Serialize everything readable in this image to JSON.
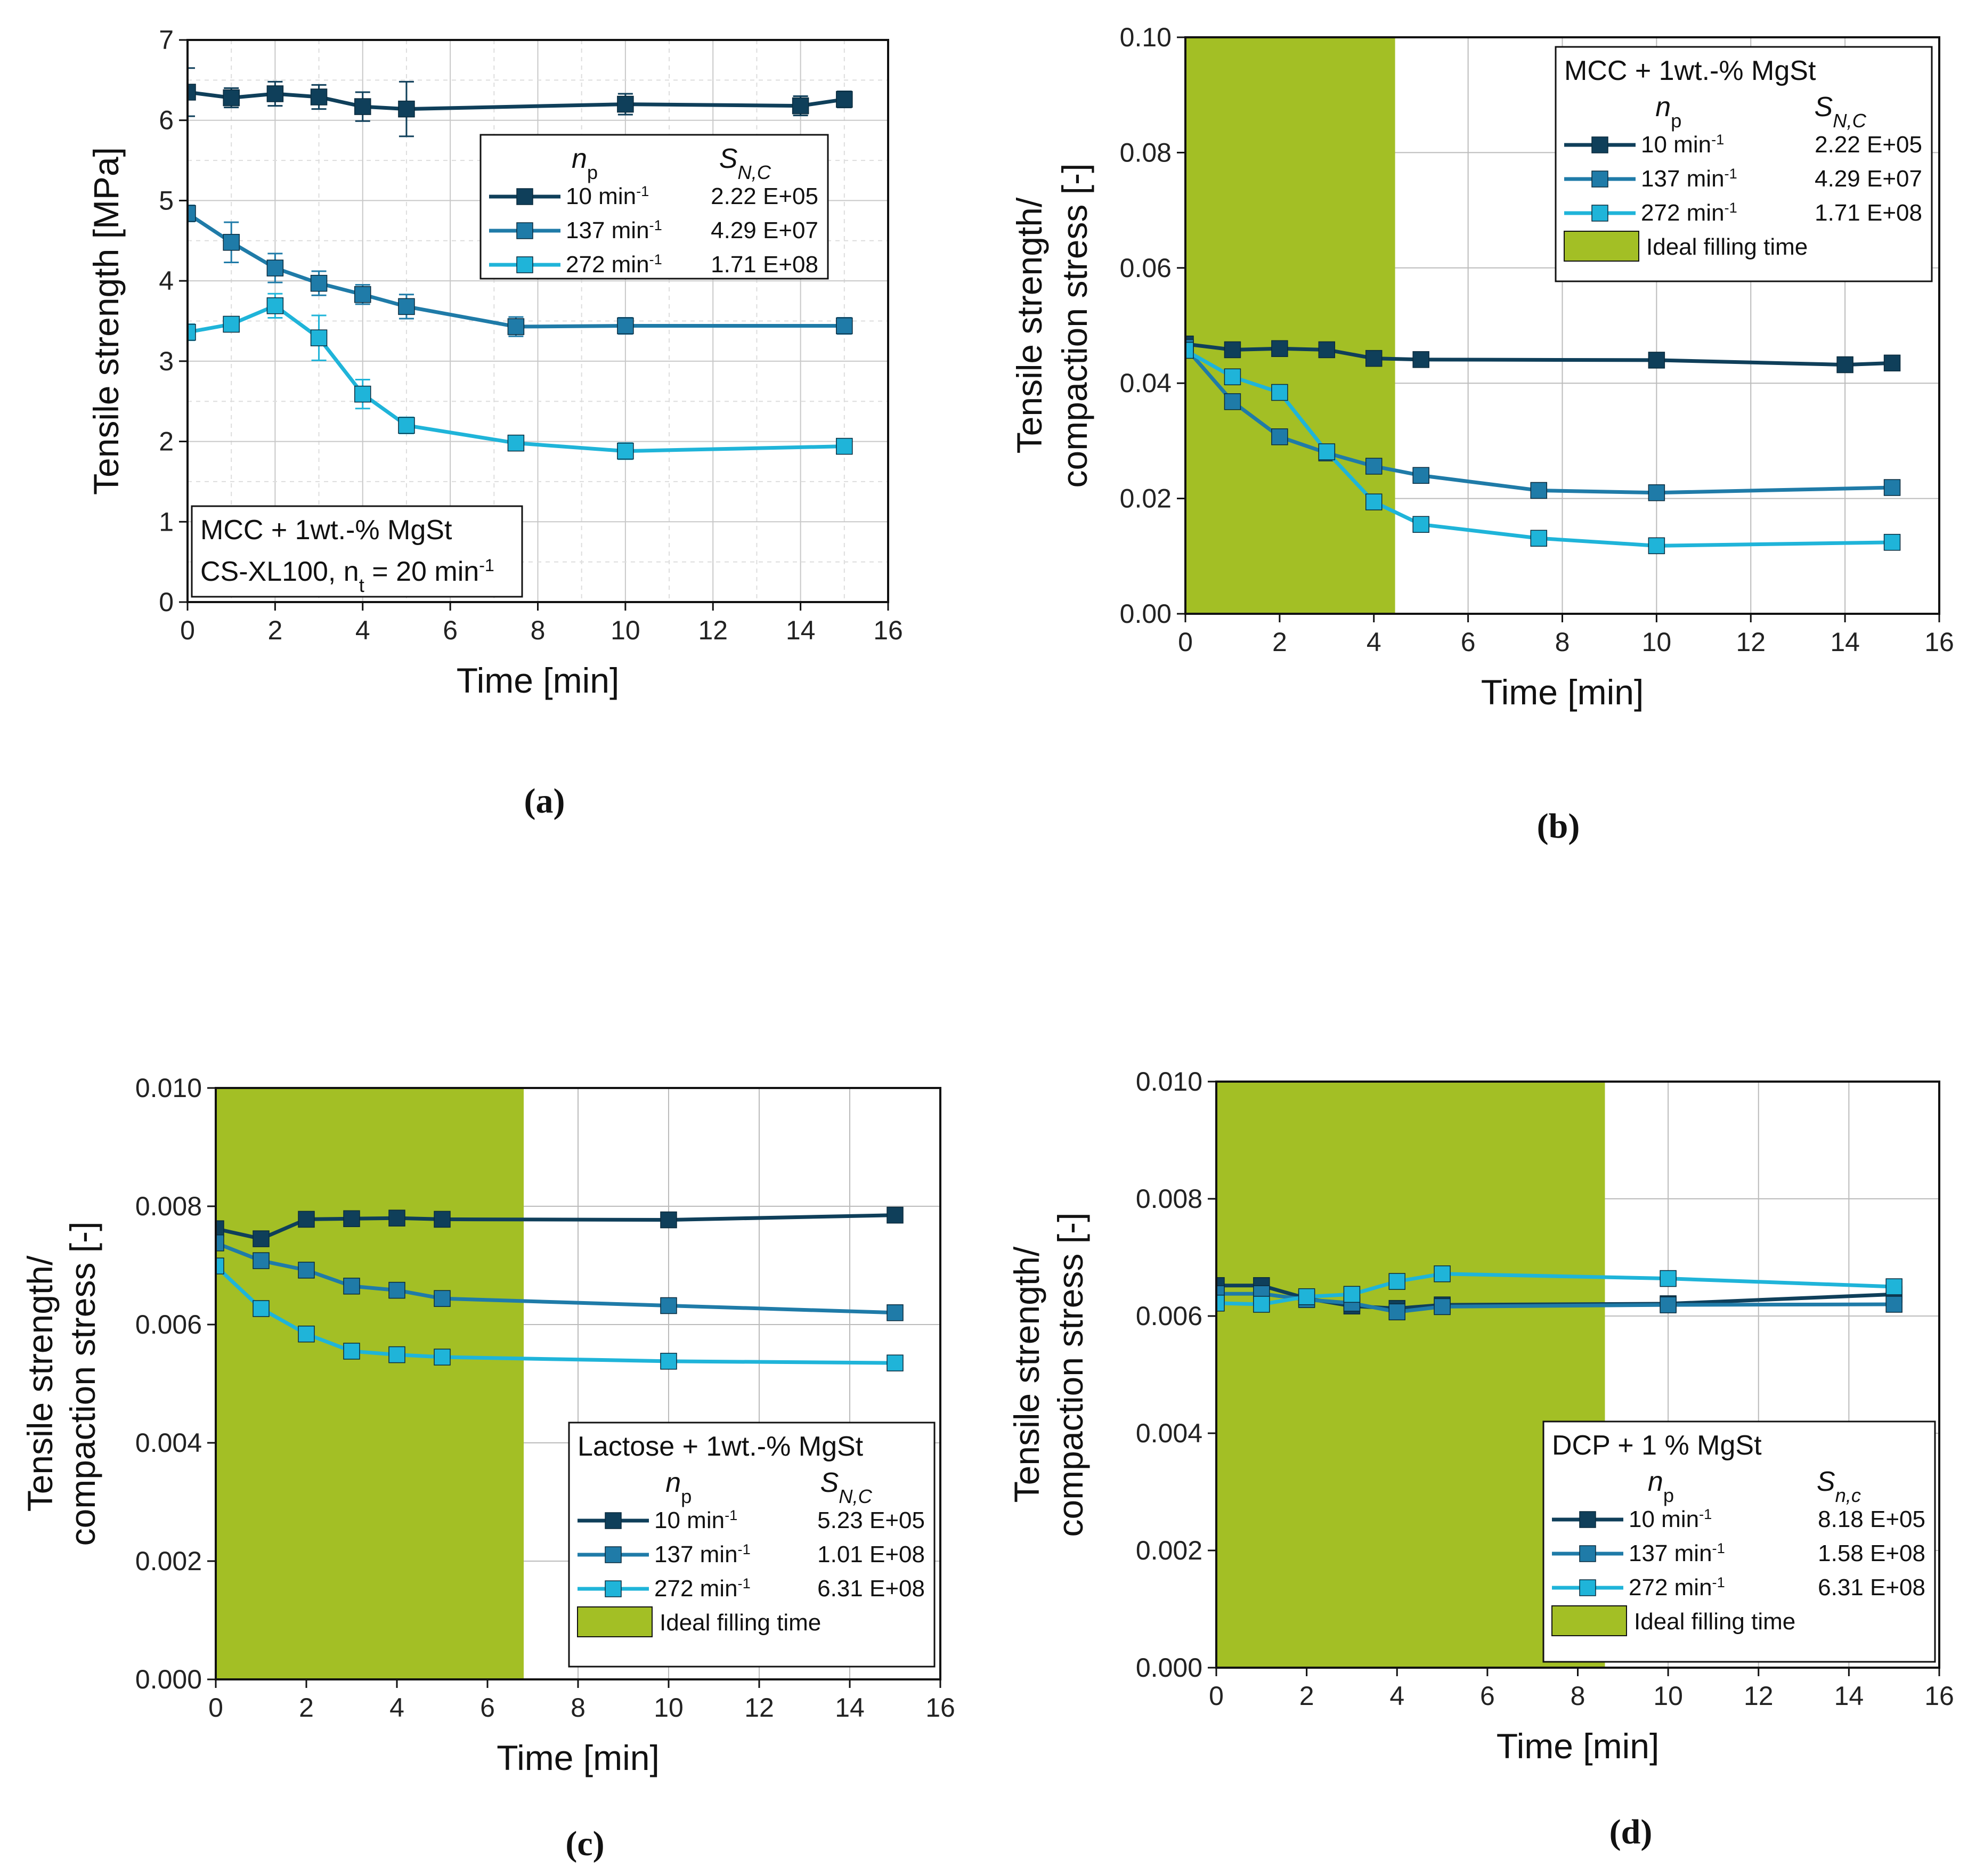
{
  "colors": {
    "s10": "#0f3f5a",
    "s137": "#1f7ba8",
    "s272": "#1fb4d9",
    "fill_zone": "#a3bf25"
  },
  "chart_data": [
    {
      "id": "a",
      "type": "line",
      "caption": "(a)",
      "xlabel": "Time [min]",
      "ylabel": "Tensile strength [MPa]",
      "xlim": [
        0,
        16
      ],
      "ylim": [
        0,
        7
      ],
      "xticks": [
        0,
        2,
        4,
        6,
        8,
        10,
        12,
        14,
        16
      ],
      "yticks": [
        0,
        1,
        2,
        3,
        4,
        5,
        6,
        7
      ],
      "y_decimals": 0,
      "grid": "minor",
      "error_bars": true,
      "shade_until": null,
      "series": [
        {
          "name": "10 min-1",
          "sn": "2.22 E+05",
          "color": "s10",
          "x": [
            0,
            1,
            2,
            3,
            4,
            5,
            10,
            14,
            15
          ],
          "y": [
            6.35,
            6.28,
            6.33,
            6.29,
            6.17,
            6.14,
            6.2,
            6.18,
            6.26
          ],
          "err": [
            0.3,
            0.12,
            0.15,
            0.15,
            0.18,
            0.34,
            0.13,
            0.12,
            0.1
          ]
        },
        {
          "name": "137 min-1",
          "sn": "4.29 E+07",
          "color": "s137",
          "x": [
            0,
            1,
            2,
            3,
            4,
            5,
            7.5,
            10,
            15
          ],
          "y": [
            4.84,
            4.48,
            4.16,
            3.97,
            3.83,
            3.68,
            3.43,
            3.44,
            3.44
          ],
          "err": [
            0.1,
            0.25,
            0.18,
            0.15,
            0.12,
            0.15,
            0.12,
            0.1,
            0.1
          ]
        },
        {
          "name": "272 min-1",
          "sn": "1.71 E+08",
          "color": "s272",
          "x": [
            0,
            1,
            2,
            3,
            4,
            5,
            7.5,
            10,
            15
          ],
          "y": [
            3.36,
            3.46,
            3.69,
            3.29,
            2.59,
            2.2,
            1.98,
            1.88,
            1.94
          ],
          "err": [
            0.1,
            0.08,
            0.15,
            0.28,
            0.18,
            0.1,
            0.06,
            0.1,
            0.06
          ]
        }
      ],
      "legend_header": {
        "np": "n",
        "np_sub": "p",
        "sn": "S",
        "sn_sub": "N,C"
      },
      "annotation": {
        "line1": "MCC + 1wt.-% MgSt",
        "line2": "CS-XL100, n",
        "line2_sub": "t",
        "line2_rest": " = 20 min-1"
      }
    },
    {
      "id": "b",
      "type": "line",
      "caption": "(b)",
      "xlabel": "Time [min]",
      "ylabel_lines": [
        "Tensile strength/",
        "compaction stress [-]"
      ],
      "xlim": [
        0,
        16
      ],
      "ylim": [
        0,
        0.1
      ],
      "xticks": [
        0,
        2,
        4,
        6,
        8,
        10,
        12,
        14,
        16
      ],
      "yticks": [
        0,
        0.02,
        0.04,
        0.06,
        0.08,
        0.1
      ],
      "y_decimals": 2,
      "grid": "major",
      "error_bars": false,
      "shade_until": 4.45,
      "series": [
        {
          "name": "10 min-1",
          "sn": "2.22 E+05",
          "color": "s10",
          "x": [
            0,
            1,
            2,
            3,
            4,
            5,
            10,
            14,
            15
          ],
          "y": [
            0.0468,
            0.0458,
            0.046,
            0.0458,
            0.0443,
            0.0441,
            0.044,
            0.0432,
            0.0435
          ]
        },
        {
          "name": "137 min-1",
          "sn": "4.29 E+07",
          "color": "s137",
          "x": [
            0,
            1,
            2,
            3,
            4,
            5,
            7.5,
            10,
            15
          ],
          "y": [
            0.0462,
            0.0368,
            0.0307,
            0.0279,
            0.0256,
            0.024,
            0.0214,
            0.021,
            0.0219
          ]
        },
        {
          "name": "272 min-1",
          "sn": "1.71 E+08",
          "color": "s272",
          "x": [
            0,
            1,
            2,
            3,
            4,
            5,
            7.5,
            10,
            15
          ],
          "y": [
            0.0457,
            0.0411,
            0.0384,
            0.0281,
            0.0194,
            0.0155,
            0.0131,
            0.0118,
            0.0124
          ]
        }
      ],
      "legend_title": "MCC + 1wt.-% MgSt",
      "legend_header": {
        "np": "n",
        "np_sub": "p",
        "sn": "S",
        "sn_sub": "N,C"
      },
      "legend_fill_label": "Ideal filling time"
    },
    {
      "id": "c",
      "type": "line",
      "caption": "(c)",
      "xlabel": "Time [min]",
      "ylabel_lines": [
        "Tensile strength/",
        "compaction stress [-]"
      ],
      "xlim": [
        0,
        16
      ],
      "ylim": [
        0,
        0.01
      ],
      "xticks": [
        0,
        2,
        4,
        6,
        8,
        10,
        12,
        14,
        16
      ],
      "yticks": [
        0,
        0.002,
        0.004,
        0.006,
        0.008,
        0.01
      ],
      "y_decimals": 3,
      "grid": "major",
      "error_bars": false,
      "shade_until": 6.8,
      "series": [
        {
          "name": "10 min-1",
          "sn": "5.23 E+05",
          "color": "s10",
          "x": [
            0,
            1,
            2,
            3,
            4,
            5,
            10,
            15
          ],
          "y": [
            0.00762,
            0.00745,
            0.00778,
            0.00779,
            0.0078,
            0.00778,
            0.00777,
            0.00785
          ]
        },
        {
          "name": "137 min-1",
          "sn": "1.01 E+08",
          "color": "s137",
          "x": [
            0,
            1,
            2,
            3,
            4,
            5,
            10,
            15
          ],
          "y": [
            0.00738,
            0.00708,
            0.00692,
            0.00665,
            0.00658,
            0.00644,
            0.00632,
            0.0062
          ]
        },
        {
          "name": "272 min-1",
          "sn": "6.31 E+08",
          "color": "s272",
          "x": [
            0,
            1,
            2,
            3,
            4,
            5,
            10,
            15
          ],
          "y": [
            0.00699,
            0.00627,
            0.00584,
            0.00555,
            0.00549,
            0.00545,
            0.00538,
            0.00535
          ]
        }
      ],
      "legend_title": "Lactose + 1wt.-% MgSt",
      "legend_header": {
        "np": "n",
        "np_sub": "p",
        "sn": "S",
        "sn_sub": "N,C"
      },
      "legend_fill_label": "Ideal filling time"
    },
    {
      "id": "d",
      "type": "line",
      "caption": "(d)",
      "xlabel": "Time [min]",
      "ylabel_lines": [
        "Tensile strength/",
        "compaction stress [-]"
      ],
      "xlim": [
        0,
        16
      ],
      "ylim": [
        0,
        0.01
      ],
      "xticks": [
        0,
        2,
        4,
        6,
        8,
        10,
        12,
        14,
        16
      ],
      "yticks": [
        0,
        0.002,
        0.004,
        0.006,
        0.008,
        0.01
      ],
      "y_decimals": 3,
      "grid": "major",
      "error_bars": false,
      "shade_until": 8.6,
      "series": [
        {
          "name": "10 min-1",
          "sn": "8.18 E+05",
          "color": "s10",
          "x": [
            0,
            1,
            2,
            3,
            4,
            5,
            10,
            15
          ],
          "y": [
            0.00652,
            0.00652,
            0.0063,
            0.00617,
            0.00613,
            0.00619,
            0.00621,
            0.00637
          ]
        },
        {
          "name": "137 min-1",
          "sn": "1.58 E+08",
          "color": "s137",
          "x": [
            0,
            1,
            2,
            3,
            4,
            5,
            10,
            15
          ],
          "y": [
            0.00638,
            0.00638,
            0.00628,
            0.00622,
            0.00607,
            0.00616,
            0.00619,
            0.0062
          ]
        },
        {
          "name": "272 min-1",
          "sn": "6.31 E+08",
          "color": "s272",
          "x": [
            0,
            1,
            2,
            3,
            4,
            5,
            10,
            15
          ],
          "y": [
            0.00622,
            0.0062,
            0.00633,
            0.00637,
            0.00659,
            0.00672,
            0.00664,
            0.0065
          ]
        }
      ],
      "legend_title": "DCP + 1 % MgSt",
      "legend_header": {
        "np": "n",
        "np_sub": "p",
        "sn": "S",
        "sn_sub": "n,c"
      },
      "legend_fill_label": "Ideal filling time"
    }
  ]
}
